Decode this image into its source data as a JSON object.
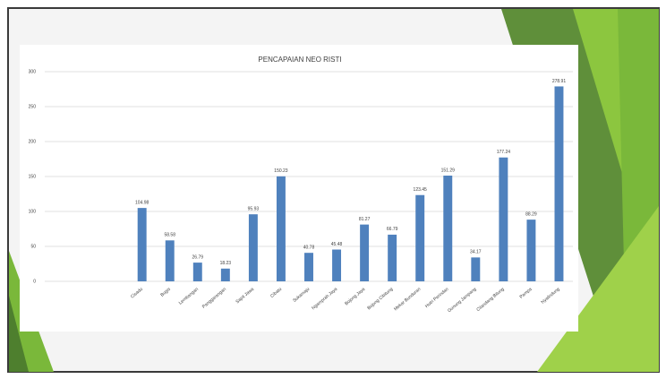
{
  "chart_data": {
    "type": "bar",
    "title": "PENCAPAIAN  NEO RISTI",
    "categories": [
      null,
      null,
      null,
      "Cisadu",
      "Bugis",
      "Lembangan",
      "Panggarangan",
      "Sapit Jawa",
      "Cibatu",
      "Sukamaju",
      "Ngamprah Jaya",
      "Bojong Jaya",
      "Bojong Cibitung",
      "Mekar Bunduran",
      "Hutri Perindan",
      "Gunung Jampang",
      "Cilandang Bitung",
      "Pampa",
      "Nyalindung"
    ],
    "values": [
      null,
      null,
      null,
      104.98,
      58.58,
      26.79,
      18.23,
      95.93,
      150.23,
      40.78,
      45.48,
      81.27,
      66.79,
      123.45,
      151.29,
      34.17,
      177.24,
      88.29,
      278.91
    ],
    "color": "#4f81bd",
    "ylim": [
      0,
      300
    ],
    "yticks": [
      0,
      50,
      100,
      150,
      200,
      250,
      300
    ],
    "grid": true
  }
}
